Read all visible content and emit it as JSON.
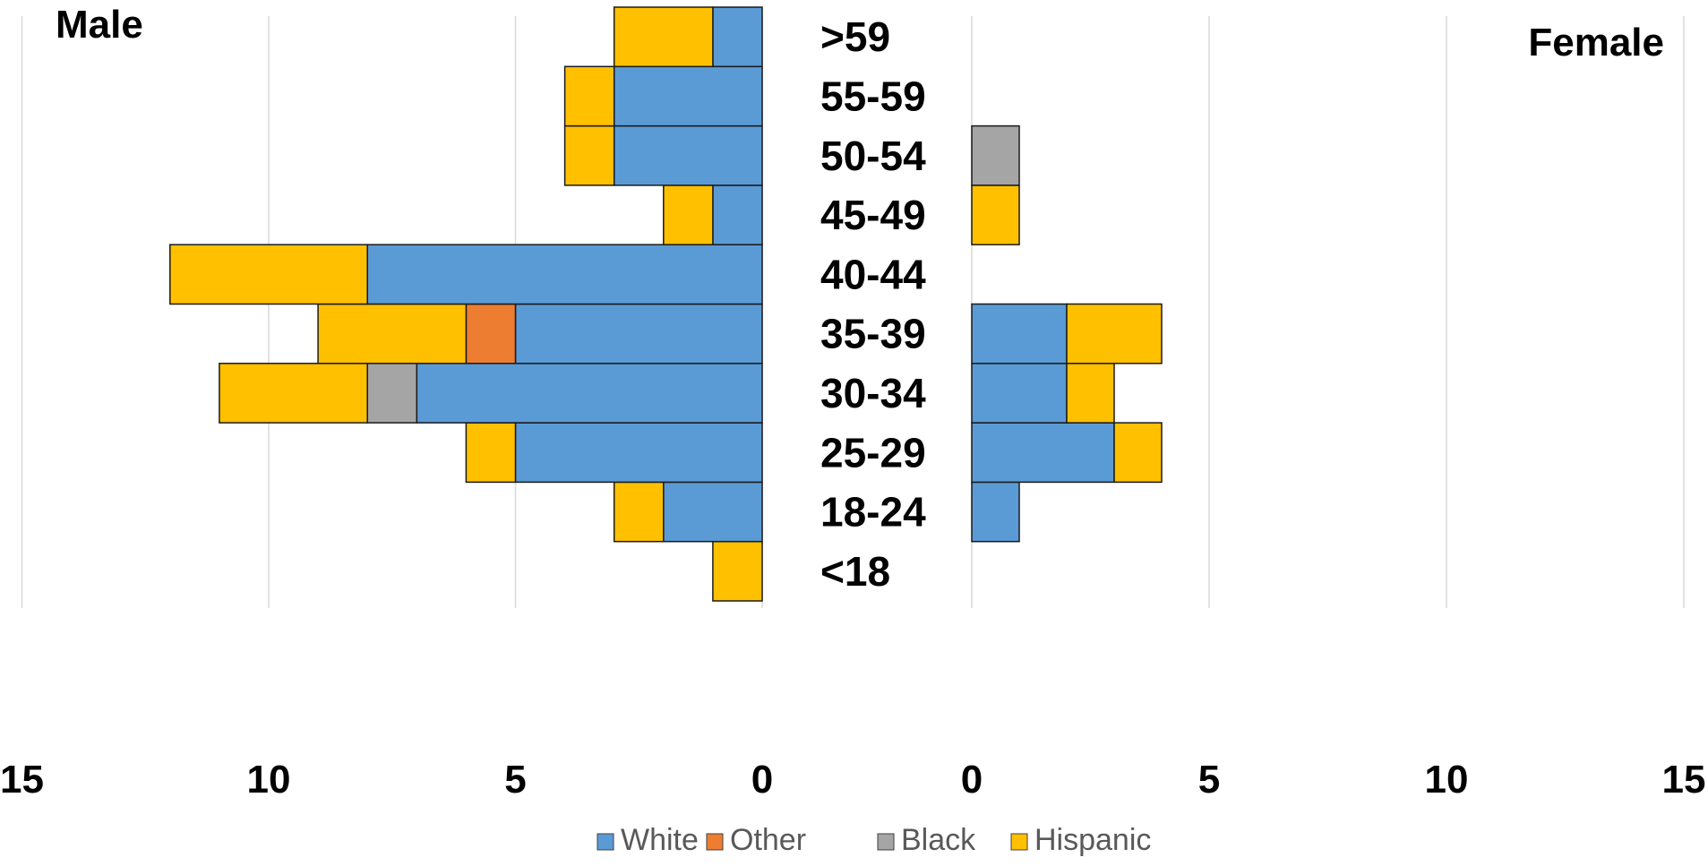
{
  "chart_data": {
    "type": "bar",
    "orientation": "horizontal",
    "stacked": true,
    "layout": "population-pyramid",
    "categories": [
      "<18",
      "18-24",
      "25-29",
      "30-34",
      "35-39",
      "40-44",
      "45-49",
      "50-54",
      "55-59",
      ">59"
    ],
    "category_order_top_to_bottom": [
      ">59",
      "55-59",
      "50-54",
      "45-49",
      "40-44",
      "35-39",
      "30-34",
      "25-29",
      "18-24",
      "<18"
    ],
    "series_names": [
      "White",
      "Other",
      "Black",
      "Hispanic"
    ],
    "colors": {
      "White": "#5b9bd5",
      "Other": "#ed7d31",
      "Black": "#a5a5a5",
      "Hispanic": "#ffc000"
    },
    "panels": [
      {
        "title": "Male",
        "direction": "left",
        "xlim": [
          0,
          15
        ],
        "ticks": [
          0,
          5,
          10,
          15
        ],
        "tick_labels": [
          "0",
          "5",
          "10",
          "15"
        ],
        "series": [
          {
            "name": "White",
            "values": [
              0,
              2,
              5,
              7,
              5,
              8,
              1,
              3,
              3,
              1
            ]
          },
          {
            "name": "Other",
            "values": [
              0,
              0,
              0,
              0,
              1,
              0,
              0,
              0,
              0,
              0
            ]
          },
          {
            "name": "Black",
            "values": [
              0,
              0,
              0,
              1,
              0,
              0,
              0,
              0,
              0,
              0
            ]
          },
          {
            "name": "Hispanic",
            "values": [
              1,
              1,
              1,
              3,
              3,
              4,
              1,
              1,
              1,
              2
            ]
          }
        ]
      },
      {
        "title": "Female",
        "direction": "right",
        "xlim": [
          0,
          15
        ],
        "ticks": [
          0,
          5,
          10,
          15
        ],
        "tick_labels": [
          "0",
          "5",
          "10",
          "15"
        ],
        "series": [
          {
            "name": "White",
            "values": [
              0,
              1,
              3,
              2,
              2,
              0,
              0,
              0,
              0,
              0
            ]
          },
          {
            "name": "Other",
            "values": [
              0,
              0,
              0,
              0,
              0,
              0,
              0,
              0,
              0,
              0
            ]
          },
          {
            "name": "Black",
            "values": [
              0,
              0,
              0,
              0,
              0,
              0,
              0,
              1,
              0,
              0
            ]
          },
          {
            "name": "Hispanic",
            "values": [
              0,
              0,
              1,
              1,
              2,
              0,
              1,
              0,
              0,
              0
            ]
          }
        ]
      }
    ],
    "legend": {
      "position": "bottom",
      "entries": [
        "White",
        "Other",
        "Black",
        "Hispanic"
      ]
    },
    "grid": "vertical"
  }
}
